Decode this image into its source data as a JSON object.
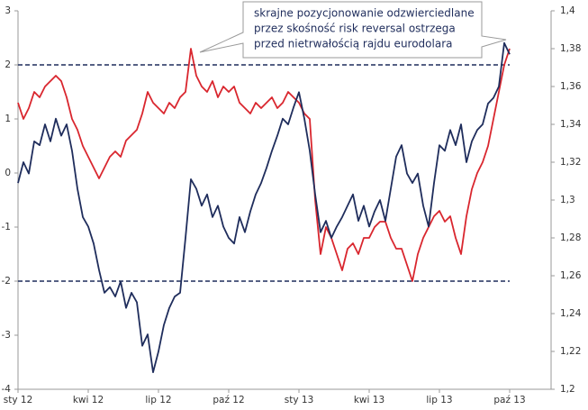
{
  "chart_data": {
    "type": "line",
    "annotation": [
      "skrajne pozycjonowanie odzwierciedlane",
      "przez skośność risk reversal ostrzega",
      "przed nietrwałością rajdu eurodolara"
    ],
    "categories": [
      "sty 12",
      null,
      null,
      null,
      null,
      null,
      null,
      null,
      null,
      null,
      null,
      null,
      null,
      "kwi 12",
      null,
      null,
      null,
      null,
      null,
      null,
      null,
      null,
      null,
      null,
      null,
      null,
      "lip 12",
      null,
      null,
      null,
      null,
      null,
      null,
      null,
      null,
      null,
      null,
      null,
      null,
      "paź 12",
      null,
      null,
      null,
      null,
      null,
      null,
      null,
      null,
      null,
      null,
      null,
      null,
      "sty 13",
      null,
      null,
      null,
      null,
      null,
      null,
      null,
      null,
      null,
      null,
      null,
      null,
      "kwi 13",
      null,
      null,
      null,
      null,
      null,
      null,
      null,
      null,
      null,
      null,
      null,
      null,
      "lip 13",
      null,
      null,
      null,
      null,
      null,
      null,
      null,
      null,
      null,
      null,
      null,
      null,
      "paź 13"
    ],
    "series": [
      {
        "color": "#d9262e",
        "axis": "y",
        "values": [
          1.3,
          1.0,
          1.2,
          1.5,
          1.4,
          1.6,
          1.7,
          1.8,
          1.7,
          1.4,
          1.0,
          0.8,
          0.5,
          0.3,
          0.1,
          -0.1,
          0.1,
          0.3,
          0.4,
          0.3,
          0.6,
          0.7,
          0.8,
          1.1,
          1.5,
          1.3,
          1.2,
          1.1,
          1.3,
          1.2,
          1.4,
          1.5,
          2.3,
          1.8,
          1.6,
          1.5,
          1.7,
          1.4,
          1.6,
          1.5,
          1.6,
          1.3,
          1.2,
          1.1,
          1.3,
          1.2,
          1.3,
          1.4,
          1.2,
          1.3,
          1.5,
          1.4,
          1.3,
          1.1,
          1.0,
          -0.5,
          -1.5,
          -1.0,
          -1.2,
          -1.5,
          -1.8,
          -1.4,
          -1.3,
          -1.5,
          -1.2,
          -1.2,
          -1.0,
          -0.9,
          -0.9,
          -1.2,
          -1.4,
          -1.4,
          -1.7,
          -2.0,
          -1.5,
          -1.2,
          -1.0,
          -0.8,
          -0.7,
          -0.9,
          -0.8,
          -1.2,
          -1.5,
          -0.8,
          -0.3,
          0.0,
          0.2,
          0.5,
          1.0,
          1.5,
          2.0,
          2.3
        ]
      },
      {
        "color": "#1f2d5c",
        "axis": "y2",
        "values": [
          1.309,
          1.32,
          1.314,
          1.331,
          1.329,
          1.34,
          1.331,
          1.343,
          1.334,
          1.34,
          1.326,
          1.306,
          1.291,
          1.286,
          1.277,
          1.263,
          1.251,
          1.254,
          1.249,
          1.257,
          1.243,
          1.251,
          1.246,
          1.223,
          1.229,
          1.209,
          1.22,
          1.234,
          1.243,
          1.249,
          1.251,
          1.28,
          1.311,
          1.306,
          1.297,
          1.303,
          1.291,
          1.297,
          1.286,
          1.28,
          1.277,
          1.291,
          1.283,
          1.294,
          1.303,
          1.309,
          1.317,
          1.326,
          1.334,
          1.343,
          1.34,
          1.349,
          1.357,
          1.343,
          1.326,
          1.303,
          1.283,
          1.289,
          1.28,
          1.286,
          1.291,
          1.297,
          1.303,
          1.289,
          1.297,
          1.286,
          1.294,
          1.3,
          1.289,
          1.306,
          1.323,
          1.329,
          1.314,
          1.309,
          1.314,
          1.297,
          1.286,
          1.309,
          1.329,
          1.326,
          1.337,
          1.329,
          1.34,
          1.32,
          1.331,
          1.337,
          1.34,
          1.351,
          1.354,
          1.36,
          1.383,
          1.377
        ]
      }
    ],
    "hlines": [
      2,
      -2
    ],
    "hline_color": "#1f2d5c",
    "ylim": [
      -4,
      3
    ],
    "yticks": [
      3,
      2,
      1,
      0,
      -1,
      -2,
      -3,
      -4
    ],
    "y2lim": [
      1.2,
      1.4
    ],
    "y2ticks": [
      {
        "value": 1.4,
        "label": "1,4"
      },
      {
        "value": 1.38,
        "label": "1,38"
      },
      {
        "value": 1.36,
        "label": "1,36"
      },
      {
        "value": 1.34,
        "label": "1,34"
      },
      {
        "value": 1.32,
        "label": "1,32"
      },
      {
        "value": 1.3,
        "label": "1,3"
      },
      {
        "value": 1.28,
        "label": "1,28"
      },
      {
        "value": 1.26,
        "label": "1,26"
      },
      {
        "value": 1.24,
        "label": "1,24"
      },
      {
        "value": 1.22,
        "label": "1,22"
      },
      {
        "value": 1.2,
        "label": "1,2"
      }
    ]
  }
}
